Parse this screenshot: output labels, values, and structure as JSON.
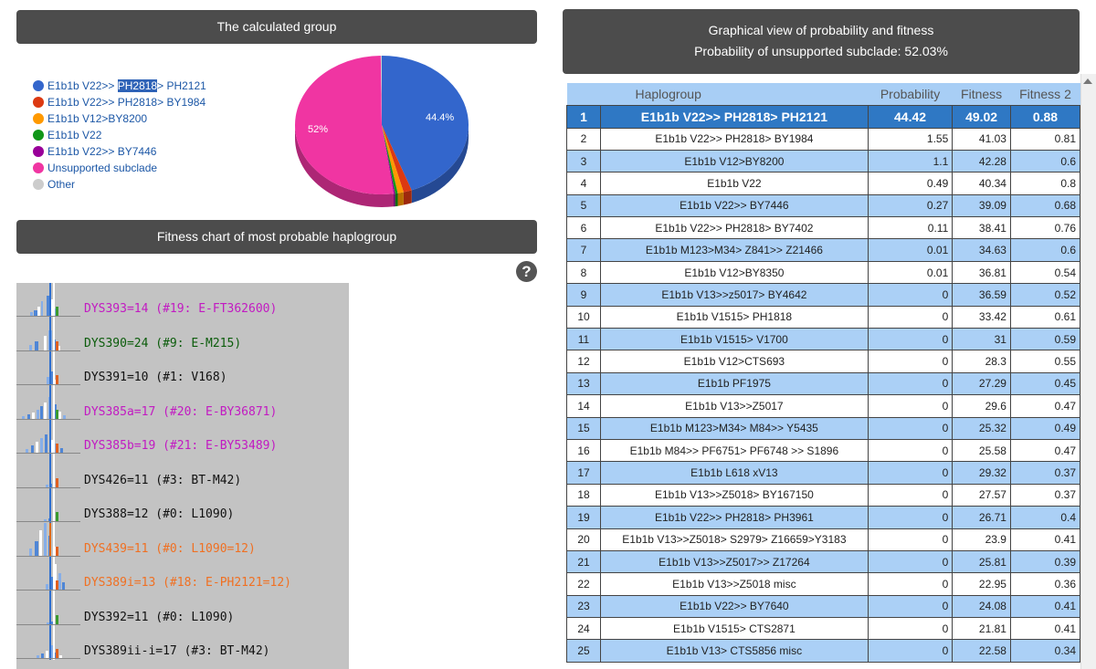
{
  "calculated_group": {
    "title": "The calculated group",
    "legend": [
      {
        "pre": "E1b1b V22>> ",
        "sel": "PH2818",
        "post": "> PH2121",
        "color": "#3366cc"
      },
      {
        "pre": "E1b1b V22>> PH2818> BY1984",
        "sel": "",
        "post": "",
        "color": "#dc3912"
      },
      {
        "pre": "E1b1b V12>BY8200",
        "sel": "",
        "post": "",
        "color": "#ff9900"
      },
      {
        "pre": "E1b1b V22",
        "sel": "",
        "post": "",
        "color": "#109618"
      },
      {
        "pre": "E1b1b V22>> BY7446",
        "sel": "",
        "post": "",
        "color": "#990099"
      },
      {
        "pre": "Unsupported subclade",
        "sel": "",
        "post": "",
        "color": "#f035a2"
      },
      {
        "pre": "Other",
        "sel": "",
        "post": "",
        "color": "#cccccc"
      }
    ],
    "pie_labels": {
      "main": "44.4%",
      "unsupported": "52%"
    }
  },
  "chart_data": {
    "type": "pie",
    "title": "The calculated group",
    "categories": [
      "E1b1b V22>> PH2818> PH2121",
      "E1b1b V22>> PH2818> BY1984",
      "E1b1b V12>BY8200",
      "E1b1b V22",
      "E1b1b V22>> BY7446",
      "Unsupported subclade",
      "Other"
    ],
    "values": [
      44.4,
      1.55,
      1.1,
      0.49,
      0.27,
      52.0,
      0.19
    ],
    "colors": [
      "#3366cc",
      "#dc3912",
      "#ff9900",
      "#109618",
      "#990099",
      "#f035a2",
      "#cccccc"
    ]
  },
  "fitness_chart": {
    "title": "Fitness chart of most probable haplogroup",
    "help": "?",
    "rows": [
      {
        "label": "DYS393=14 (#19: E-FT362600)",
        "color": "#c21ac2"
      },
      {
        "label": "DYS390=24 (#9: E-M215)",
        "color": "#0b5c0b"
      },
      {
        "label": "DYS391=10 (#1: V168)",
        "color": "#111111"
      },
      {
        "label": "DYS385a=17 (#20: E-BY36871)",
        "color": "#c21ac2"
      },
      {
        "label": "DYS385b=19 (#21: E-BY53489)",
        "color": "#c21ac2"
      },
      {
        "label": "DYS426=11 (#3: BT-M42)",
        "color": "#111111"
      },
      {
        "label": "DYS388=12 (#0: L1090)",
        "color": "#111111"
      },
      {
        "label": "DYS439=11 (#0: L1090=12)",
        "color": "#f07022"
      },
      {
        "label": "DYS389i=13 (#18: E-PH2121=12)",
        "color": "#f07022"
      },
      {
        "label": "DYS392=11 (#0: L1090)",
        "color": "#111111"
      },
      {
        "label": "DYS389ii-i=17 (#3: BT-M42)",
        "color": "#111111"
      }
    ]
  },
  "graph_view": {
    "title": "Graphical view of probability and fitness",
    "subtitle": "Probability of unsupported subclade: 52.03%"
  },
  "table": {
    "headers": {
      "haplogroup": "Haplogroup",
      "probability": "Probability",
      "fitness": "Fitness",
      "fitness2": "Fitness 2"
    },
    "rows": [
      {
        "rank": "1",
        "haplogroup": "E1b1b V22>> PH2818> PH2121",
        "probability": "44.42",
        "fitness": "49.02",
        "fitness2": "0.88"
      },
      {
        "rank": "2",
        "haplogroup": "E1b1b V22>> PH2818> BY1984",
        "probability": "1.55",
        "fitness": "41.03",
        "fitness2": "0.81"
      },
      {
        "rank": "3",
        "haplogroup": "E1b1b V12>BY8200",
        "probability": "1.1",
        "fitness": "42.28",
        "fitness2": "0.6"
      },
      {
        "rank": "4",
        "haplogroup": "E1b1b V22",
        "probability": "0.49",
        "fitness": "40.34",
        "fitness2": "0.8"
      },
      {
        "rank": "5",
        "haplogroup": "E1b1b V22>> BY7446",
        "probability": "0.27",
        "fitness": "39.09",
        "fitness2": "0.68"
      },
      {
        "rank": "6",
        "haplogroup": "E1b1b V22>> PH2818> BY7402",
        "probability": "0.11",
        "fitness": "38.41",
        "fitness2": "0.76"
      },
      {
        "rank": "7",
        "haplogroup": "E1b1b M123>M34> Z841>> Z21466",
        "probability": "0.01",
        "fitness": "34.63",
        "fitness2": "0.6"
      },
      {
        "rank": "8",
        "haplogroup": "E1b1b V12>BY8350",
        "probability": "0.01",
        "fitness": "36.81",
        "fitness2": "0.54"
      },
      {
        "rank": "9",
        "haplogroup": "E1b1b V13>>z5017> BY4642",
        "probability": "0",
        "fitness": "36.59",
        "fitness2": "0.52"
      },
      {
        "rank": "10",
        "haplogroup": "E1b1b V1515> PH1818",
        "probability": "0",
        "fitness": "33.42",
        "fitness2": "0.61"
      },
      {
        "rank": "11",
        "haplogroup": "E1b1b V1515> V1700",
        "probability": "0",
        "fitness": "31",
        "fitness2": "0.59"
      },
      {
        "rank": "12",
        "haplogroup": "E1b1b V12>CTS693",
        "probability": "0",
        "fitness": "28.3",
        "fitness2": "0.55"
      },
      {
        "rank": "13",
        "haplogroup": "E1b1b PF1975",
        "probability": "0",
        "fitness": "27.29",
        "fitness2": "0.45"
      },
      {
        "rank": "14",
        "haplogroup": "E1b1b V13>>Z5017",
        "probability": "0",
        "fitness": "29.6",
        "fitness2": "0.47"
      },
      {
        "rank": "15",
        "haplogroup": "E1b1b M123>M34> M84>> Y5435",
        "probability": "0",
        "fitness": "25.32",
        "fitness2": "0.49"
      },
      {
        "rank": "16",
        "haplogroup": "E1b1b M84>> PF6751> PF6748 >> S1896",
        "probability": "0",
        "fitness": "25.58",
        "fitness2": "0.47"
      },
      {
        "rank": "17",
        "haplogroup": "E1b1b L618 xV13",
        "probability": "0",
        "fitness": "29.32",
        "fitness2": "0.37"
      },
      {
        "rank": "18",
        "haplogroup": "E1b1b V13>>Z5018> BY167150",
        "probability": "0",
        "fitness": "27.57",
        "fitness2": "0.37"
      },
      {
        "rank": "19",
        "haplogroup": "E1b1b V22>> PH2818> PH3961",
        "probability": "0",
        "fitness": "26.71",
        "fitness2": "0.4"
      },
      {
        "rank": "20",
        "haplogroup": "E1b1b V13>>Z5018> S2979> Z16659>Y3183",
        "probability": "0",
        "fitness": "23.9",
        "fitness2": "0.41"
      },
      {
        "rank": "21",
        "haplogroup": "E1b1b V13>>Z5017>> Z17264",
        "probability": "0",
        "fitness": "25.81",
        "fitness2": "0.39"
      },
      {
        "rank": "22",
        "haplogroup": "E1b1b V13>>Z5018 misc",
        "probability": "0",
        "fitness": "22.95",
        "fitness2": "0.36"
      },
      {
        "rank": "23",
        "haplogroup": "E1b1b V22>> BY7640",
        "probability": "0",
        "fitness": "24.08",
        "fitness2": "0.41"
      },
      {
        "rank": "24",
        "haplogroup": "E1b1b V1515> CTS2871",
        "probability": "0",
        "fitness": "21.81",
        "fitness2": "0.41"
      },
      {
        "rank": "25",
        "haplogroup": "E1b1b V13> CTS5856 misc",
        "probability": "0",
        "fitness": "22.58",
        "fitness2": "0.34"
      }
    ]
  }
}
